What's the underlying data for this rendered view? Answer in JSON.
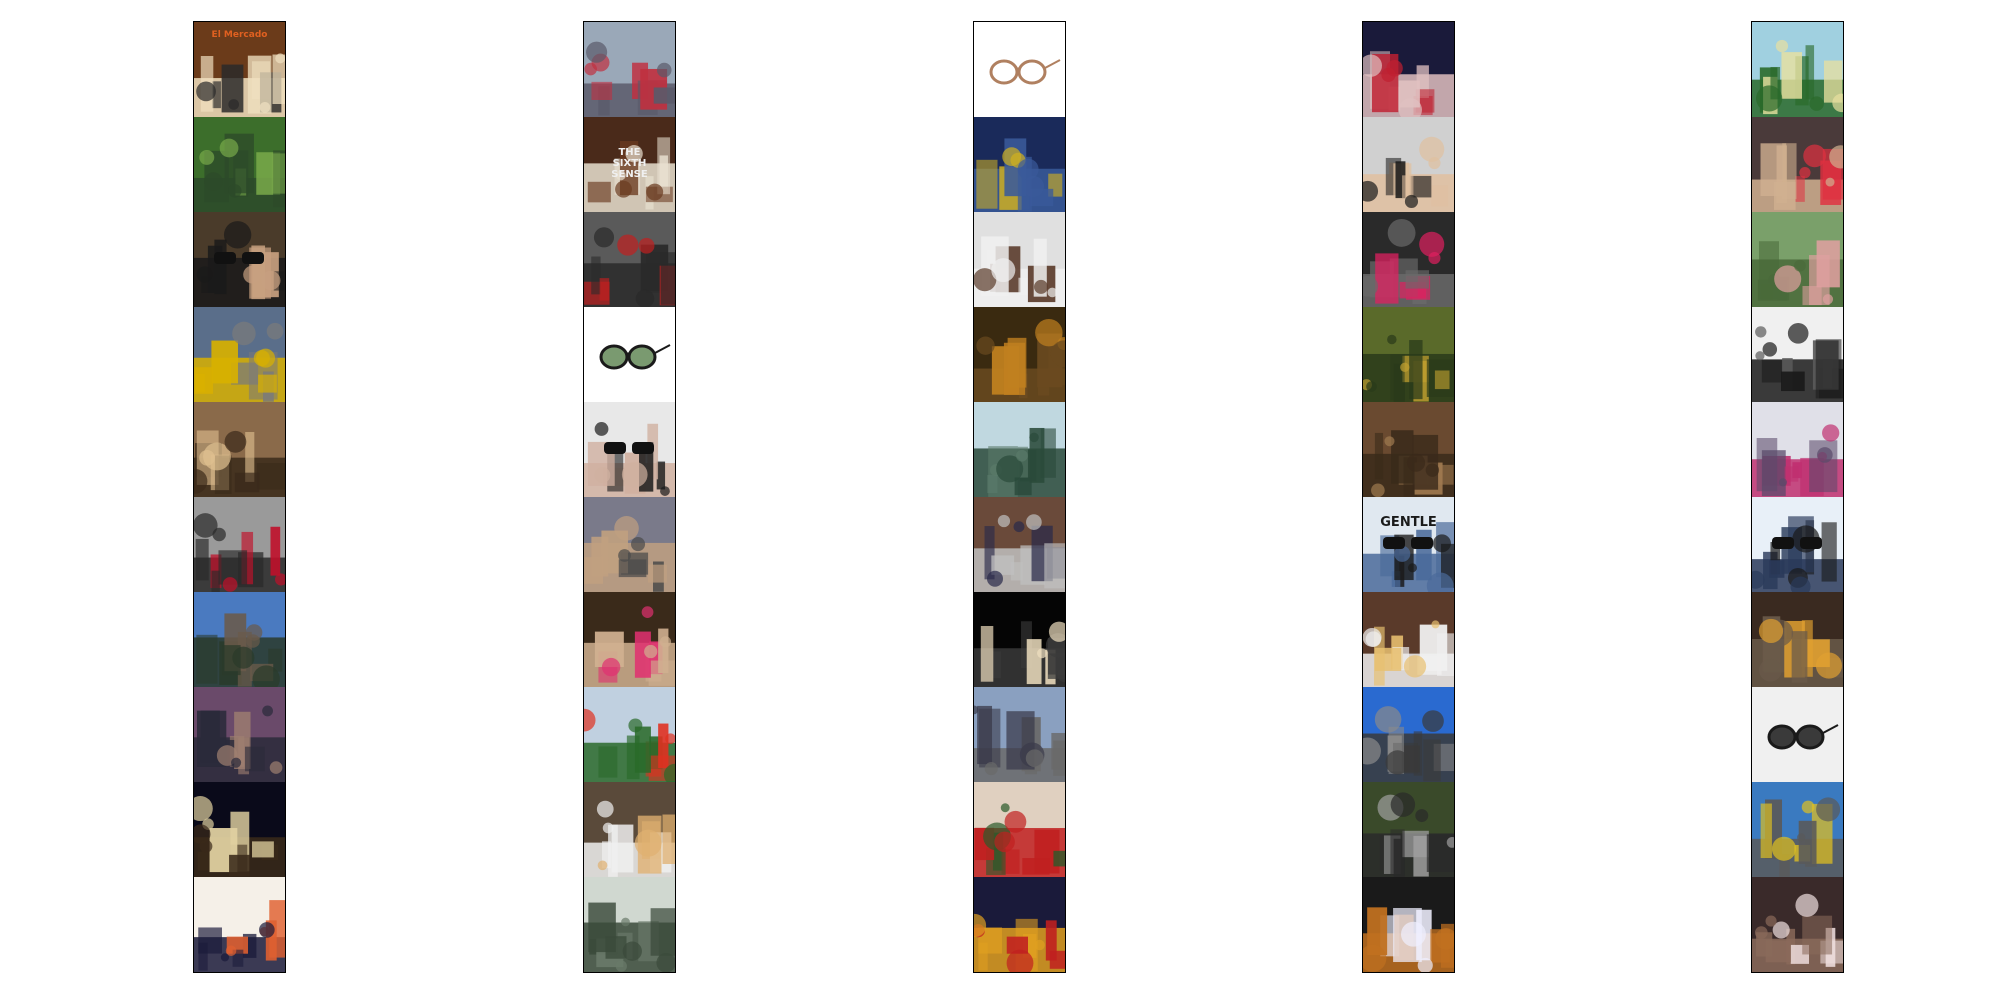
{
  "strips": [
    {
      "tiles": [
        {
          "kind": "photo-street-shop",
          "text": "El Mercado",
          "colors": [
            "#6b3b1a",
            "#2a2a2a",
            "#f0e0c0"
          ]
        },
        {
          "kind": "photo-garden",
          "text": "",
          "colors": [
            "#3c6e2b",
            "#78a94a",
            "#2c4a2a"
          ]
        },
        {
          "kind": "photo-sunglasses-people",
          "text": "",
          "colors": [
            "#4a3b2a",
            "#c8a080",
            "#1a1a1a"
          ]
        },
        {
          "kind": "photo-cathedral-street",
          "text": "",
          "colors": [
            "#5a6e8a",
            "#7a7a7a",
            "#d8b000"
          ]
        },
        {
          "kind": "photo-selfie-woman",
          "text": "",
          "colors": [
            "#8a6a4a",
            "#e0c090",
            "#3a2a1a"
          ]
        },
        {
          "kind": "photo-red-box",
          "text": "",
          "colors": [
            "#9a9a9a",
            "#c0102a",
            "#2a2a2a"
          ]
        },
        {
          "kind": "photo-city-sky",
          "text": "",
          "colors": [
            "#4a7ac0",
            "#6a5a4a",
            "#2a3a2a"
          ]
        },
        {
          "kind": "photo-street-kids",
          "text": "",
          "colors": [
            "#6a4a6a",
            "#a08070",
            "#2a2a3a"
          ]
        },
        {
          "kind": "photo-night-tower",
          "text": "",
          "colors": [
            "#0a0a1a",
            "#e0d0a0",
            "#3a2a1a"
          ]
        },
        {
          "kind": "photo-poster-orange",
          "text": "",
          "colors": [
            "#f5f0e8",
            "#e06030",
            "#1a1a3a"
          ]
        }
      ]
    },
    {
      "tiles": [
        {
          "kind": "photo-times-square",
          "text": "",
          "colors": [
            "#9aa8b8",
            "#c03040",
            "#5a5a6a"
          ]
        },
        {
          "kind": "photo-sixth-sense",
          "text": "THE SIXTH SENSE",
          "colors": [
            "#4a2a1a",
            "#6a3a20",
            "#e8e0d0"
          ]
        },
        {
          "kind": "photo-marathon",
          "text": "",
          "colors": [
            "#5a5a5a",
            "#c02020",
            "#2a2a2a"
          ]
        },
        {
          "kind": "photo-sunglasses-product",
          "text": "",
          "colors": [
            "#ffffff",
            "#1a1a1a",
            "#7a9a70"
          ]
        },
        {
          "kind": "photo-portrait-sunglasses",
          "text": "",
          "colors": [
            "#e8e8e8",
            "#1a1a1a",
            "#d0b0a0"
          ]
        },
        {
          "kind": "photo-marathon-street",
          "text": "",
          "colors": [
            "#7a7a8a",
            "#4a4a4a",
            "#c0a080"
          ]
        },
        {
          "kind": "photo-pink-group",
          "text": "",
          "colors": [
            "#3a2a1a",
            "#e03070",
            "#d0b090"
          ]
        },
        {
          "kind": "photo-red-jacket",
          "text": "",
          "colors": [
            "#c0d0e0",
            "#e03020",
            "#2a6a2a"
          ]
        },
        {
          "kind": "photo-drink",
          "text": "",
          "colors": [
            "#5a4a3a",
            "#e0b070",
            "#f0f0f0"
          ]
        },
        {
          "kind": "photo-pier",
          "text": "",
          "colors": [
            "#d0d8d0",
            "#6a7a6a",
            "#3a4a3a"
          ]
        }
      ]
    },
    {
      "tiles": [
        {
          "kind": "photo-glasses-product",
          "text": "",
          "colors": [
            "#ffffff",
            "#b08060",
            "#e0d0c0"
          ]
        },
        {
          "kind": "photo-market-stall",
          "text": "",
          "colors": [
            "#1a2a5a",
            "#d0b020",
            "#3a5a9a"
          ]
        },
        {
          "kind": "photo-women-counter",
          "text": "",
          "colors": [
            "#e0e0e0",
            "#5a3a2a",
            "#f0f0f0"
          ]
        },
        {
          "kind": "photo-alley-night",
          "text": "",
          "colors": [
            "#3a2a10",
            "#c08020",
            "#6a4a20"
          ]
        },
        {
          "kind": "photo-statue",
          "text": "",
          "colors": [
            "#c0d8e0",
            "#5a7a6a",
            "#2a4a3a"
          ]
        },
        {
          "kind": "photo-crowd-street",
          "text": "",
          "colors": [
            "#6a4a3a",
            "#2a2a4a",
            "#c0c0c0"
          ]
        },
        {
          "kind": "photo-concert",
          "text": "",
          "colors": [
            "#050505",
            "#f0e0c0",
            "#3a3a3a"
          ]
        },
        {
          "kind": "photo-avenue",
          "text": "",
          "colors": [
            "#8aa0c0",
            "#3a3a4a",
            "#6a6a6a"
          ]
        },
        {
          "kind": "photo-christmas-tree",
          "text": "",
          "colors": [
            "#e0d0c0",
            "#2a5a2a",
            "#c02020"
          ]
        },
        {
          "kind": "photo-times-square-night",
          "text": "",
          "colors": [
            "#1a1a3a",
            "#c02020",
            "#e0a020"
          ]
        }
      ]
    },
    {
      "tiles": [
        {
          "kind": "photo-crowd-night",
          "text": "",
          "colors": [
            "#1a1a3a",
            "#c02030",
            "#e0c0c0"
          ]
        },
        {
          "kind": "photo-portrait-woman",
          "text": "",
          "colors": [
            "#d0d0d0",
            "#1a1a1a",
            "#e0c0a0"
          ]
        },
        {
          "kind": "photo-festival-crowd",
          "text": "",
          "colors": [
            "#2a2a2a",
            "#e02060",
            "#6a6a6a"
          ]
        },
        {
          "kind": "photo-autumn-park",
          "text": "",
          "colors": [
            "#5a6a2a",
            "#c0a030",
            "#2a3a1a"
          ]
        },
        {
          "kind": "photo-carved-door",
          "text": "",
          "colors": [
            "#6a4a30",
            "#a07a50",
            "#3a2a1a"
          ]
        },
        {
          "kind": "photo-gentle-sunglasses",
          "text": "GENTLE",
          "colors": [
            "#e0e8f0",
            "#1a1a1a",
            "#4a6a9a"
          ]
        },
        {
          "kind": "photo-pie",
          "text": "",
          "colors": [
            "#5a3a2a",
            "#e8c070",
            "#f0f0f0"
          ]
        },
        {
          "kind": "photo-blue-sky-street",
          "text": "",
          "colors": [
            "#2a6ad0",
            "#8a8a8a",
            "#3a3a3a"
          ]
        },
        {
          "kind": "photo-park-building",
          "text": "",
          "colors": [
            "#3a4a2a",
            "#a0a0a0",
            "#2a2a2a"
          ]
        },
        {
          "kind": "photo-street-light-night",
          "text": "",
          "colors": [
            "#1a1a1a",
            "#f0f0ff",
            "#c07020"
          ]
        }
      ]
    },
    {
      "tiles": [
        {
          "kind": "photo-map-illustration",
          "text": "",
          "colors": [
            "#a0d0e0",
            "#e8e0a0",
            "#2a6a2a"
          ]
        },
        {
          "kind": "photo-selfie-pair",
          "text": "",
          "colors": [
            "#4a3a3a",
            "#e03040",
            "#d0b090"
          ]
        },
        {
          "kind": "photo-woman-field",
          "text": "",
          "colors": [
            "#7aa06a",
            "#e0a0a0",
            "#4a6a3a"
          ]
        },
        {
          "kind": "photo-bw-skyline",
          "text": "",
          "colors": [
            "#f0f0f0",
            "#5a5a5a",
            "#1a1a1a"
          ]
        },
        {
          "kind": "photo-guitar-player",
          "text": "",
          "colors": [
            "#e0e0e8",
            "#5a4a6a",
            "#c03070"
          ]
        },
        {
          "kind": "photo-sunglasses-display",
          "text": "",
          "colors": [
            "#e8f0f8",
            "#1a1a1a",
            "#2a3a5a"
          ]
        },
        {
          "kind": "photo-beer",
          "text": "",
          "colors": [
            "#3a2a20",
            "#e0a030",
            "#6a5a4a"
          ]
        },
        {
          "kind": "photo-sunglasses-grey",
          "text": "",
          "colors": [
            "#f0f0f0",
            "#1a1a1a",
            "#3a3a3a"
          ]
        },
        {
          "kind": "photo-city-avenue",
          "text": "",
          "colors": [
            "#3a7ac0",
            "#e0c020",
            "#5a5a5a"
          ]
        },
        {
          "kind": "photo-concert-stage",
          "text": "",
          "colors": [
            "#3a2a2a",
            "#f0e0e0",
            "#8a6a5a"
          ]
        }
      ]
    }
  ]
}
